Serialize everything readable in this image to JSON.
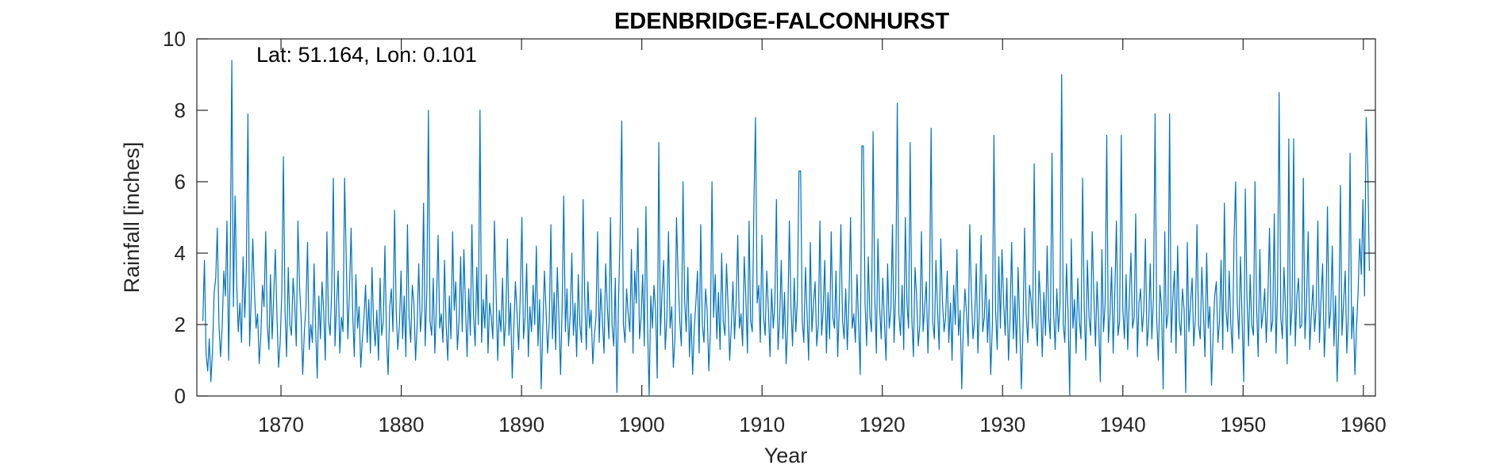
{
  "chart_data": {
    "type": "line",
    "title": "EDENBRIDGE-FALCONHURST",
    "xlabel": "Year",
    "ylabel": "Rainfall [inches]",
    "annotation": "Lat: 51.164, Lon: 0.101",
    "xlim": [
      1863,
      1961
    ],
    "ylim": [
      0,
      10
    ],
    "xticks": [
      1870,
      1880,
      1890,
      1900,
      1910,
      1920,
      1930,
      1940,
      1950,
      1960
    ],
    "yticks": [
      0,
      2,
      4,
      6,
      8,
      10
    ],
    "grid": false,
    "line_color": "#0072BD",
    "series": [
      {
        "x_start": 1863.5,
        "x_end": 1960.5,
        "sampling": "monthly",
        "values": [
          2.1,
          3.8,
          1.2,
          0.7,
          1.6,
          0.4,
          1.3,
          2.9,
          3.3,
          4.7,
          2.0,
          1.1,
          1.9,
          3.5,
          2.8,
          4.9,
          1.0,
          3.7,
          9.4,
          2.5,
          5.6,
          3.2,
          1.8,
          2.6,
          1.5,
          3.9,
          2.2,
          3.6,
          7.9,
          1.4,
          2.7,
          4.4,
          3.0,
          1.9,
          2.3,
          0.9,
          1.7,
          3.1,
          2.5,
          4.6,
          2.0,
          1.3,
          3.4,
          1.6,
          2.8,
          4.1,
          2.2,
          0.8,
          1.5,
          2.9,
          6.7,
          2.4,
          1.1,
          3.6,
          2.0,
          1.7,
          3.3,
          2.6,
          1.4,
          4.9,
          3.1,
          2.2,
          0.6,
          1.8,
          2.5,
          4.3,
          1.3,
          2.0,
          1.5,
          3.7,
          1.9,
          0.5,
          2.8,
          1.6,
          3.2,
          2.4,
          1.0,
          4.6,
          2.1,
          1.7,
          3.0,
          6.1,
          1.4,
          2.6,
          3.5,
          1.2,
          2.2,
          1.8,
          6.1,
          3.8,
          1.6,
          2.9,
          4.7,
          2.3,
          1.1,
          3.4,
          1.9,
          2.5,
          0.8,
          1.6,
          2.2,
          3.1,
          1.5,
          2.7,
          1.2,
          3.6,
          2.0,
          1.4,
          2.4,
          1.0,
          3.3,
          1.7,
          2.1,
          4.2,
          1.6,
          0.6,
          2.5,
          3.0,
          1.8,
          5.2,
          2.4,
          1.3,
          2.0,
          3.5,
          1.6,
          2.8,
          1.1,
          4.8,
          2.2,
          1.5,
          3.1,
          2.6,
          1.0,
          2.0,
          3.7,
          1.8,
          2.4,
          5.4,
          1.4,
          2.9,
          8.0,
          2.1,
          1.7,
          3.3,
          1.2,
          2.6,
          4.5,
          1.9,
          2.3,
          1.5,
          3.8,
          2.0,
          1.0,
          2.8,
          1.6,
          4.6,
          2.4,
          3.2,
          1.3,
          2.1,
          3.9,
          1.8,
          4.1,
          2.5,
          1.1,
          3.0,
          1.7,
          4.8,
          2.3,
          1.4,
          3.6,
          2.0,
          8.0,
          1.5,
          2.7,
          1.9,
          3.4,
          1.2,
          2.6,
          2.2,
          1.6,
          4.9,
          2.9,
          1.0,
          2.4,
          1.8,
          3.3,
          1.4,
          2.1,
          4.4,
          1.7,
          2.6,
          0.5,
          1.9,
          3.2,
          2.3,
          1.3,
          2.8,
          5.0,
          1.6,
          2.2,
          3.7,
          1.1,
          2.5,
          1.8,
          3.1,
          2.0,
          4.2,
          1.4,
          2.7,
          0.2,
          1.9,
          3.5,
          2.4,
          1.2,
          2.1,
          4.8,
          1.6,
          2.9,
          1.3,
          3.6,
          2.2,
          0.6,
          2.5,
          5.6,
          1.8,
          3.0,
          1.4,
          2.3,
          4.0,
          1.7,
          2.6,
          1.1,
          3.4,
          2.0,
          1.5,
          5.5,
          2.8,
          1.3,
          3.2,
          1.9,
          2.4,
          0.9,
          1.7,
          2.2,
          4.6,
          1.5,
          3.0,
          2.1,
          1.2,
          3.7,
          2.5,
          1.6,
          5.0,
          2.0,
          1.4,
          3.3,
          0.1,
          2.7,
          4.6,
          7.7,
          2.0,
          1.5,
          3.0,
          2.3,
          1.8,
          4.1,
          1.2,
          3.5,
          2.6,
          4.7,
          1.6,
          2.2,
          3.4,
          1.4,
          5.3,
          2.0,
          0.0,
          2.8,
          1.9,
          3.1,
          2.4,
          0.5,
          7.1,
          1.7,
          2.9,
          3.8,
          1.3,
          2.2,
          4.6,
          1.9,
          2.5,
          0.8,
          1.6,
          5.0,
          3.3,
          2.1,
          1.4,
          6.0,
          2.7,
          1.8,
          3.6,
          1.1,
          2.3,
          0.6,
          1.9,
          2.6,
          3.5,
          1.2,
          4.8,
          2.0,
          1.5,
          3.0,
          2.4,
          0.7,
          1.8,
          6.0,
          2.2,
          3.4,
          1.6,
          2.9,
          1.3,
          4.0,
          2.1,
          1.7,
          3.7,
          2.5,
          1.0,
          2.0,
          3.2,
          1.6,
          2.7,
          4.5,
          1.9,
          2.3,
          1.4,
          3.9,
          2.8,
          1.2,
          4.9,
          2.1,
          1.8,
          5.3,
          7.8,
          2.6,
          3.1,
          1.5,
          4.5,
          2.2,
          1.7,
          3.5,
          2.4,
          1.1,
          3.0,
          1.9,
          2.6,
          5.5,
          1.3,
          2.2,
          3.8,
          1.6,
          2.9,
          0.9,
          2.0,
          4.9,
          2.5,
          1.4,
          3.3,
          1.8,
          2.7,
          6.3,
          6.3,
          2.1,
          1.5,
          3.6,
          2.3,
          1.0,
          4.3,
          1.8,
          2.6,
          3.2,
          1.4,
          2.0,
          4.9,
          1.7,
          2.4,
          3.8,
          1.2,
          2.9,
          1.6,
          4.6,
          2.2,
          1.9,
          3.5,
          1.1,
          2.5,
          4.8,
          2.1,
          1.6,
          3.0,
          1.3,
          2.7,
          5.0,
          1.9,
          2.3,
          1.5,
          3.4,
          2.0,
          0.6,
          7.0,
          7.0,
          2.6,
          1.4,
          3.9,
          2.2,
          1.8,
          7.4,
          2.8,
          1.2,
          4.4,
          2.5,
          1.6,
          3.3,
          2.1,
          1.0,
          3.7,
          1.9,
          2.4,
          4.8,
          1.5,
          2.9,
          8.2,
          2.3,
          1.7,
          3.1,
          1.3,
          5.0,
          2.6,
          1.9,
          7.1,
          2.2,
          1.1,
          3.6,
          2.8,
          1.4,
          2.0,
          4.6,
          1.8,
          2.5,
          3.2,
          1.2,
          2.9,
          7.5,
          2.1,
          1.6,
          3.8,
          2.4,
          1.3,
          4.4,
          2.7,
          1.8,
          2.2,
          3.5,
          1.5,
          2.6,
          1.0,
          3.1,
          2.0,
          4.1,
          1.7,
          2.4,
          0.2,
          1.9,
          3.0,
          2.3,
          1.4,
          4.8,
          2.8,
          1.6,
          2.1,
          3.7,
          1.2,
          2.5,
          4.5,
          1.8,
          2.2,
          3.4,
          1.5,
          2.7,
          0.6,
          2.0,
          7.3,
          2.4,
          1.3,
          3.9,
          1.9,
          4.1,
          2.6,
          1.7,
          3.3,
          1.0,
          2.2,
          4.3,
          1.6,
          2.8,
          1.2,
          3.6,
          2.0,
          0.2,
          1.8,
          4.7,
          2.3,
          1.5,
          3.1,
          2.7,
          1.9,
          6.5,
          2.1,
          1.4,
          3.5,
          2.5,
          1.1,
          2.9,
          1.7,
          4.2,
          2.2,
          1.6,
          6.8,
          2.4,
          1.3,
          3.0,
          1.8,
          2.6,
          9.0,
          2.0,
          1.5,
          3.7,
          2.3,
          0.0,
          4.4,
          1.9,
          2.7,
          1.2,
          3.3,
          2.1,
          1.6,
          6.1,
          2.5,
          1.0,
          3.8,
          2.2,
          1.7,
          4.6,
          2.8,
          1.4,
          3.2,
          2.0,
          0.4,
          4.1,
          1.8,
          2.6,
          7.3,
          1.5,
          2.3,
          3.6,
          1.2,
          2.9,
          4.9,
          1.7,
          2.1,
          7.3,
          2.4,
          1.6,
          3.4,
          1.3,
          2.7,
          4.0,
          1.9,
          2.2,
          5.1,
          1.1,
          2.6,
          3.0,
          1.8,
          2.4,
          4.4,
          1.4,
          2.0,
          3.7,
          1.6,
          2.8,
          7.9,
          2.2,
          1.0,
          3.1,
          2.5,
          0.2,
          4.6,
          1.9,
          2.3,
          7.9,
          1.5,
          2.7,
          3.5,
          1.2,
          4.2,
          2.1,
          1.7,
          3.0,
          2.4,
          0.1,
          4.3,
          1.8,
          2.6,
          3.3,
          1.4,
          2.2,
          4.8,
          2.0,
          1.6,
          3.6,
          2.3,
          1.1,
          4.0,
          1.9,
          2.5,
          0.3,
          1.7,
          2.8,
          3.2,
          1.5,
          2.1,
          3.8,
          1.3,
          5.4,
          2.4,
          1.8,
          3.5,
          2.0,
          1.2,
          4.4,
          6.0,
          2.6,
          1.6,
          3.9,
          2.2,
          0.4,
          5.8,
          2.8,
          1.4,
          3.4,
          2.0,
          1.7,
          6.0,
          2.5,
          1.1,
          4.1,
          1.9,
          2.3,
          3.0,
          1.5,
          2.7,
          4.7,
          1.8,
          2.1,
          5.1,
          1.2,
          2.9,
          8.5,
          2.2,
          1.6,
          3.6,
          2.4,
          0.9,
          7.2,
          1.7,
          2.5,
          7.2,
          1.4,
          2.8,
          3.3,
          1.9,
          2.0,
          6.1,
          1.6,
          2.6,
          4.6,
          1.3,
          2.3,
          3.1,
          1.8,
          2.5,
          4.9,
          1.5,
          2.7,
          3.7,
          1.1,
          2.2,
          5.3,
          1.9,
          2.4,
          4.2,
          1.4,
          2.8,
          0.4,
          2.0,
          5.9,
          1.7,
          2.6,
          3.5,
          1.2,
          2.3,
          6.8,
          1.6,
          2.5,
          0.6,
          1.9,
          2.9,
          4.4,
          3.4,
          5.5,
          2.8,
          7.8,
          6.4,
          3.5
        ]
      }
    ]
  }
}
